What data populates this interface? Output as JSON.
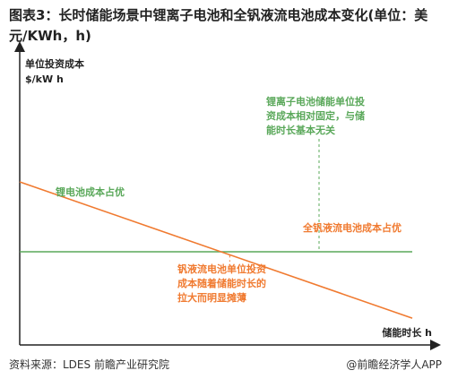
{
  "title": "图表3：长时储能场景中锂离子电池和全钒液流电池成本变化(单位：美元/KWh，h)",
  "source": "资料来源：LDES 前瞻产业研究院",
  "brand": "@前瞻经济学人APP",
  "colors": {
    "lithium": "#5aa85a",
    "vanadium": "#f07a30",
    "axis": "#222222",
    "text": "#222222"
  },
  "chart_data": {
    "type": "line",
    "ylabel_line1": "单位投资成本",
    "ylabel_line2": "$/kW h",
    "xlabel": "储能时长 h",
    "grid": false,
    "xlim": [
      0,
      10
    ],
    "ylim": [
      0,
      10
    ],
    "series": [
      {
        "name": "锂离子电池",
        "x": [
          0,
          10
        ],
        "y": [
          3.2,
          3.2
        ],
        "color": "#5aa85a"
      },
      {
        "name": "全钒液流电池",
        "x": [
          0,
          10
        ],
        "y": [
          5.6,
          0.92
        ],
        "color": "#f07a30"
      }
    ],
    "annotations": {
      "lithium_note": [
        "锂离子电池储能单位投",
        "资成本相对固定，与储",
        "能时长基本无关"
      ],
      "vanadium_note": [
        "钒液流电池单位投资",
        "成本随着储能时长的",
        "拉大而明显摊薄"
      ],
      "lithium_region_label": "锂电池成本占优",
      "vanadium_region_label": "全钒液流电池成本占优"
    }
  }
}
